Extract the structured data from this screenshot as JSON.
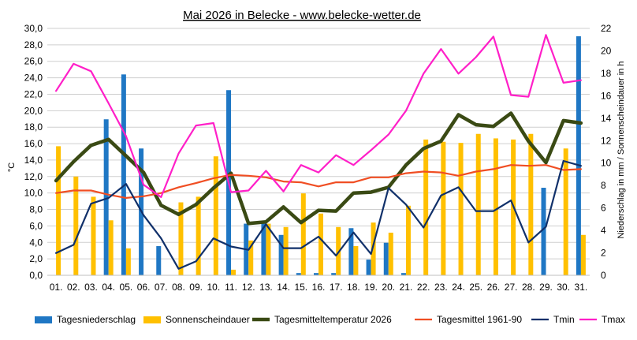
{
  "chart_data": {
    "type": "bar",
    "title": "Mai 2026 in Belecke - www.belecke-wetter.de",
    "ylabel_left": "°C",
    "ylabel_right": "Niederschlag in mm / Sonnenscheindauer in h",
    "ylim_left": [
      0,
      30
    ],
    "ylim_right": [
      0,
      22
    ],
    "left_ticks": [
      "0,0",
      "2,0",
      "4,0",
      "6,0",
      "8,0",
      "10,0",
      "12,0",
      "14,0",
      "16,0",
      "18,0",
      "20,0",
      "22,0",
      "24,0",
      "26,0",
      "28,0",
      "30,0"
    ],
    "right_ticks": [
      "0",
      "2",
      "4",
      "6",
      "8",
      "10",
      "12",
      "14",
      "16",
      "18",
      "20",
      "22"
    ],
    "categories": [
      "01.",
      "02.",
      "03.",
      "04.",
      "05.",
      "06.",
      "07.",
      "08.",
      "09.",
      "10.",
      "11.",
      "12.",
      "13.",
      "14.",
      "15.",
      "16.",
      "17.",
      "18.",
      "19.",
      "20.",
      "21.",
      "22.",
      "23.",
      "24.",
      "25.",
      "26.",
      "27.",
      "28.",
      "29.",
      "30.",
      "31."
    ],
    "grid": true,
    "legend_position": "bottom",
    "series": [
      {
        "name": "Tagesniederschlag",
        "kind": "bar",
        "axis": "right",
        "color": "#1f77c4",
        "values": [
          0,
          0,
          0,
          13.9,
          17.9,
          11.3,
          2.6,
          0,
          0,
          0,
          16.5,
          4.6,
          4.6,
          3.6,
          0.2,
          0.2,
          0.2,
          4.2,
          1.4,
          2.9,
          0.2,
          0,
          0,
          0,
          0,
          0,
          0,
          0,
          7.8,
          0,
          21.3
        ]
      },
      {
        "name": "Sonnenscheindauer",
        "kind": "bar",
        "axis": "right",
        "color": "#ffc000",
        "values": [
          11.5,
          8.8,
          7.0,
          4.9,
          2.4,
          0,
          0,
          6.5,
          7.0,
          10.6,
          0.5,
          3.1,
          4.6,
          4.3,
          7.3,
          5.5,
          4.3,
          2.6,
          4.7,
          3.8,
          6.2,
          12.1,
          11.9,
          11.8,
          12.6,
          12.2,
          12.1,
          12.6,
          0,
          11.3,
          3.6
        ]
      },
      {
        "name": "Tagesmitteltemperatur 2026",
        "kind": "line",
        "axis": "left",
        "color": "#3a4a14",
        "values": [
          11.5,
          13.8,
          15.8,
          16.5,
          14.5,
          12.5,
          8.5,
          7.4,
          8.6,
          10.6,
          12.4,
          6.3,
          6.5,
          8.3,
          6.4,
          7.9,
          7.8,
          10.0,
          10.1,
          10.7,
          13.4,
          15.4,
          16.3,
          19.5,
          18.3,
          18.1,
          19.7,
          16.3,
          13.7,
          18.8,
          18.5
        ]
      },
      {
        "name": "Tagesmittel 1961-90",
        "kind": "line",
        "axis": "left",
        "color": "#f04e23",
        "values": [
          10.0,
          10.3,
          10.3,
          9.8,
          9.4,
          9.6,
          10.0,
          10.7,
          11.2,
          11.8,
          12.2,
          12.1,
          11.9,
          11.4,
          11.3,
          10.8,
          11.3,
          11.3,
          11.9,
          11.9,
          12.4,
          12.6,
          12.5,
          12.1,
          12.6,
          12.9,
          13.4,
          13.3,
          13.4,
          12.8,
          12.9
        ]
      },
      {
        "name": "Tmin",
        "kind": "line",
        "axis": "left",
        "color": "#10306a",
        "values": [
          2.7,
          3.7,
          8.7,
          9.4,
          11.1,
          7.3,
          4.5,
          0.8,
          1.7,
          4.5,
          3.5,
          3.1,
          6.2,
          3.3,
          3.3,
          4.7,
          2.4,
          5.2,
          2.6,
          10.6,
          8.6,
          5.8,
          9.7,
          10.7,
          7.8,
          7.8,
          9.1,
          4.0,
          5.9,
          13.9,
          13.3
        ]
      },
      {
        "name": "Tmax",
        "kind": "line",
        "axis": "left",
        "color": "#ff1fc8",
        "values": [
          22.4,
          25.7,
          24.8,
          20.9,
          16.9,
          11.0,
          9.5,
          14.8,
          18.2,
          18.5,
          10.1,
          10.3,
          12.7,
          10.2,
          13.4,
          12.5,
          14.6,
          13.4,
          15.2,
          17.1,
          20.0,
          24.5,
          27.5,
          24.5,
          26.5,
          29.0,
          21.9,
          21.7,
          29.2,
          23.4,
          23.7
        ]
      }
    ]
  }
}
